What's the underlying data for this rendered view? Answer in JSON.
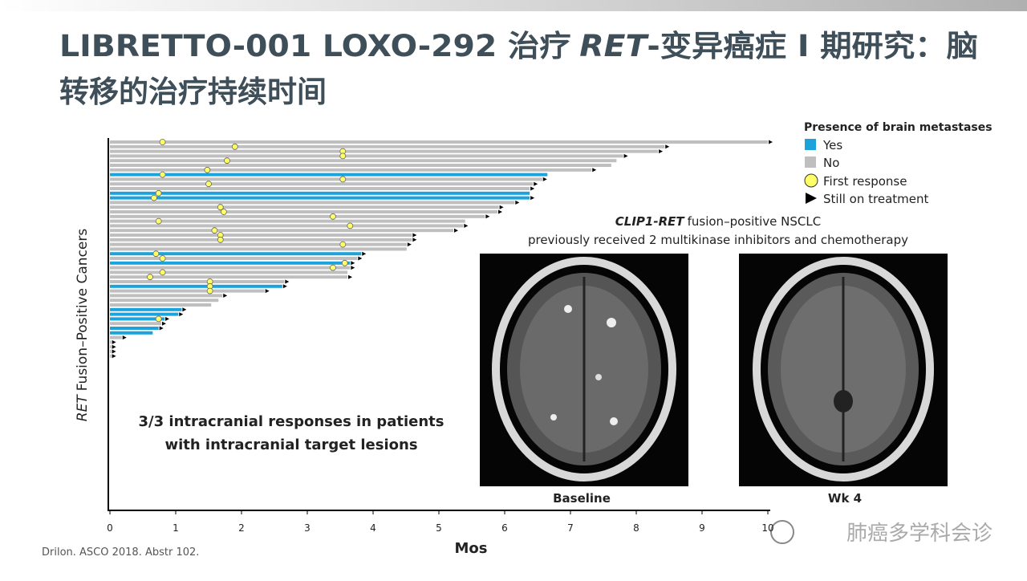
{
  "slide": {
    "title_line1": [
      "LIBRETTO-001 LOXO-292 治疗",
      "RET",
      "-变异癌症 I 期研究：脑"
    ],
    "title_line2": "转移的治疗持续时间",
    "image_caption": [
      "CLIP1-RET",
      "fusion–positive NSCLC"
    ],
    "image_subcaption": "previously received 2 multikinase inhibitors and chemotherapy",
    "image_labels": [
      "Baseline",
      "Wk 4"
    ],
    "footnote": "Drilon. ASCO 2018. Abstr 102.",
    "watermark": "肺癌多学科会诊"
  },
  "chart_data": {
    "type": "swimmer",
    "x_label": "Mos",
    "y_label": [
      "RET",
      "Fusion–Positive Cancers"
    ],
    "xlim": [
      0,
      10
    ],
    "xticks": [
      0,
      1,
      2,
      3,
      4,
      5,
      6,
      7,
      8,
      9,
      10
    ],
    "legend_title": "Presence of brain metastases",
    "series": [
      {
        "name": "Yes",
        "color": "#1ca3dc"
      },
      {
        "name": "No",
        "color": "#bfbfbf"
      }
    ],
    "response_marker": {
      "name": "First response",
      "color": "#ffff66"
    },
    "ongoing_marker": {
      "name": "Still on treatment",
      "color": "#000000"
    },
    "values": [
      10.0,
      8.43,
      8.33,
      7.8,
      7.7,
      7.62,
      7.32,
      6.65,
      6.57,
      6.43,
      6.38,
      6.38,
      6.38,
      6.15,
      5.91,
      5.89,
      5.7,
      5.4,
      5.37,
      5.22,
      4.59,
      4.59,
      4.51,
      4.51,
      3.82,
      3.76,
      3.65,
      3.65,
      3.61,
      3.61,
      2.65,
      2.62,
      2.35,
      1.71,
      1.65,
      1.54,
      1.09,
      1.04,
      0.83,
      0.78,
      0.74,
      0.65,
      0.18,
      0.02,
      0.02,
      0.02,
      0.02
    ],
    "brain_mets": [
      false,
      false,
      false,
      false,
      false,
      false,
      false,
      true,
      false,
      false,
      false,
      true,
      true,
      false,
      false,
      false,
      false,
      false,
      false,
      false,
      false,
      false,
      false,
      false,
      true,
      false,
      true,
      false,
      false,
      false,
      false,
      true,
      false,
      false,
      false,
      false,
      true,
      true,
      true,
      false,
      true,
      true,
      false,
      false,
      false,
      false,
      false
    ],
    "response": [
      0.8,
      1.9,
      3.54,
      3.54,
      1.78,
      null,
      1.48,
      0.8,
      3.54,
      1.5,
      null,
      0.74,
      0.67,
      null,
      1.68,
      1.73,
      3.39,
      0.74,
      3.65,
      1.59,
      1.68,
      1.68,
      3.54,
      null,
      0.7,
      0.8,
      3.57,
      3.39,
      0.8,
      0.61,
      1.52,
      1.52,
      1.52,
      null,
      null,
      null,
      null,
      null,
      0.74,
      null,
      null,
      null,
      null,
      null,
      null,
      null,
      null
    ],
    "ongoing": [
      true,
      true,
      true,
      true,
      false,
      false,
      true,
      false,
      true,
      true,
      true,
      false,
      true,
      true,
      true,
      true,
      true,
      false,
      true,
      true,
      true,
      true,
      true,
      false,
      true,
      true,
      true,
      true,
      false,
      true,
      true,
      true,
      true,
      true,
      false,
      false,
      true,
      true,
      true,
      true,
      true,
      false,
      true,
      true,
      true,
      true,
      true
    ],
    "annotation": [
      "3/3 intracranial responses in patients",
      "with intracranial target lesions"
    ]
  }
}
